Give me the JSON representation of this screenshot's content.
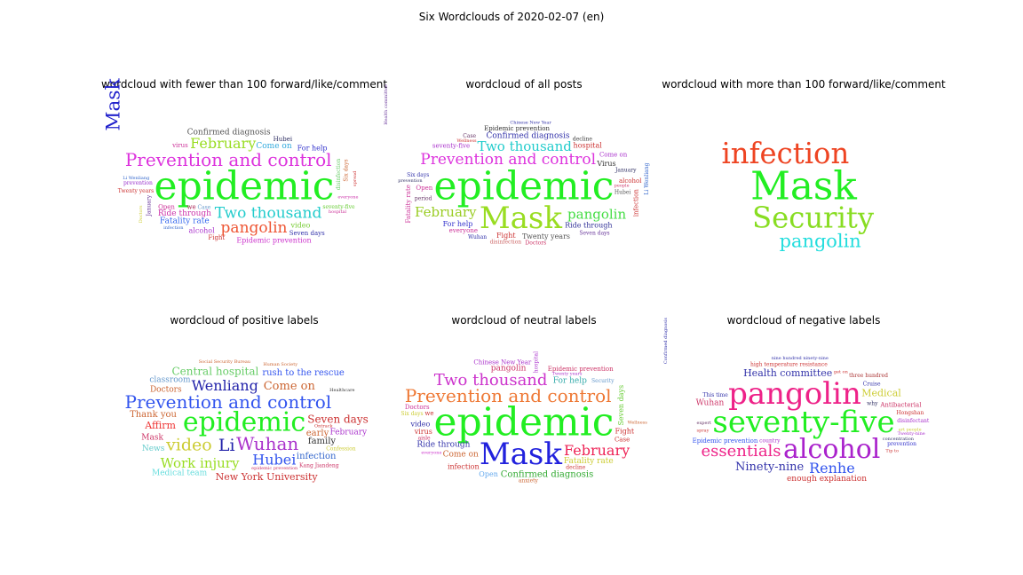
{
  "suptitle": "Six Wordclouds of 2020-02-07 (en)",
  "chart_data": [
    {
      "type": "wordcloud",
      "title": "wordcloud with fewer than 100 forward/like/comment",
      "words": [
        {
          "text": "epidemic",
          "weight": 44,
          "color": "#22ee22"
        },
        {
          "text": "Mask",
          "weight": 36,
          "color": "#2222cc",
          "vertical": true
        },
        {
          "text": "Prevention and control",
          "weight": 20,
          "color": "#dd33dd"
        },
        {
          "text": "Two thousand",
          "weight": 17,
          "color": "#22cccc"
        },
        {
          "text": "pangolin",
          "weight": 17,
          "color": "#ee5533"
        },
        {
          "text": "February",
          "weight": 16,
          "color": "#99dd22"
        },
        {
          "text": "Ride through",
          "weight": 9,
          "color": "#cc33aa"
        },
        {
          "text": "Fatality rate",
          "weight": 9,
          "color": "#3366ee"
        },
        {
          "text": "Come on",
          "weight": 9,
          "color": "#33aadd"
        },
        {
          "text": "Confirmed diagnosis",
          "weight": 9,
          "color": "#555555"
        },
        {
          "text": "Epidemic prevention",
          "weight": 8,
          "color": "#cc33cc"
        },
        {
          "text": "video",
          "weight": 8,
          "color": "#77cc33"
        },
        {
          "text": "alcohol",
          "weight": 8,
          "color": "#aa33cc"
        },
        {
          "text": "For help",
          "weight": 8,
          "color": "#3333cc"
        },
        {
          "text": "Hubei",
          "weight": 7,
          "color": "#333366"
        },
        {
          "text": "Fight",
          "weight": 7,
          "color": "#cc3333"
        },
        {
          "text": "we",
          "weight": 7,
          "color": "#aa2255"
        },
        {
          "text": "Seven days",
          "weight": 7,
          "color": "#3333aa"
        },
        {
          "text": "Open",
          "weight": 7,
          "color": "#cc3399"
        },
        {
          "text": "virus",
          "weight": 7,
          "color": "#cc3399"
        },
        {
          "text": "Twenty years",
          "weight": 6,
          "color": "#cc3333"
        },
        {
          "text": "seventy-five",
          "weight": 6,
          "color": "#66cc33"
        },
        {
          "text": "prevention",
          "weight": 6,
          "color": "#9933cc"
        },
        {
          "text": "everyone",
          "weight": 5,
          "color": "#cc33aa"
        },
        {
          "text": "hospital",
          "weight": 5,
          "color": "#cc3399"
        },
        {
          "text": "Li Wenliang",
          "weight": 5,
          "color": "#3366cc"
        },
        {
          "text": "infection",
          "weight": 5,
          "color": "#3366cc"
        },
        {
          "text": "Case",
          "weight": 6,
          "color": "#6699cc"
        },
        {
          "text": "disinfection",
          "weight": 6,
          "color": "#66cc66",
          "vertical": true
        },
        {
          "text": "January",
          "weight": 6,
          "color": "#663399",
          "vertical": true
        },
        {
          "text": "Six days",
          "weight": 6,
          "color": "#cc6633",
          "vertical": true
        },
        {
          "text": "spread",
          "weight": 5,
          "color": "#cc3333",
          "vertical": true
        },
        {
          "text": "Doctors",
          "weight": 5,
          "color": "#cccc33",
          "vertical": true
        }
      ]
    },
    {
      "type": "wordcloud",
      "title": "wordcloud of all posts",
      "words": [
        {
          "text": "epidemic",
          "weight": 44,
          "color": "#22ee22"
        },
        {
          "text": "Mask",
          "weight": 34,
          "color": "#99dd22"
        },
        {
          "text": "Prevention and control",
          "weight": 17,
          "color": "#dd33dd"
        },
        {
          "text": "Two thousand",
          "weight": 15,
          "color": "#22cccc"
        },
        {
          "text": "pangolin",
          "weight": 15,
          "color": "#44dd44"
        },
        {
          "text": "February",
          "weight": 15,
          "color": "#99cc22"
        },
        {
          "text": "Confirmed diagnosis",
          "weight": 9,
          "color": "#3333aa"
        },
        {
          "text": "Ride through",
          "weight": 8,
          "color": "#333399"
        },
        {
          "text": "Epidemic prevention",
          "weight": 7,
          "color": "#333333"
        },
        {
          "text": "Twenty years",
          "weight": 8,
          "color": "#555555"
        },
        {
          "text": "Virus",
          "weight": 8,
          "color": "#333333"
        },
        {
          "text": "For help",
          "weight": 8,
          "color": "#3333cc"
        },
        {
          "text": "Fight",
          "weight": 8,
          "color": "#cc3333"
        },
        {
          "text": "hospital",
          "weight": 8,
          "color": "#cc3333"
        },
        {
          "text": "everyone",
          "weight": 7,
          "color": "#cc3399"
        },
        {
          "text": "seventy-five",
          "weight": 7,
          "color": "#aa33cc"
        },
        {
          "text": "Six days",
          "weight": 6,
          "color": "#3333aa"
        },
        {
          "text": "Seven days",
          "weight": 6,
          "color": "#663399"
        },
        {
          "text": "Come on",
          "weight": 7,
          "color": "#aa33cc"
        },
        {
          "text": "alcohol",
          "weight": 7,
          "color": "#cc3333"
        },
        {
          "text": "Open",
          "weight": 7,
          "color": "#cc3399"
        },
        {
          "text": "Hubei",
          "weight": 6,
          "color": "#555555"
        },
        {
          "text": "period",
          "weight": 6,
          "color": "#663366"
        },
        {
          "text": "decline",
          "weight": 6,
          "color": "#333333"
        },
        {
          "text": "January",
          "weight": 6,
          "color": "#333366"
        },
        {
          "text": "Chinese New Year",
          "weight": 5,
          "color": "#3333aa"
        },
        {
          "text": "Doctors",
          "weight": 6,
          "color": "#cc3366"
        },
        {
          "text": "disinfection",
          "weight": 6,
          "color": "#cc6666"
        },
        {
          "text": "Wuhan",
          "weight": 6,
          "color": "#3333aa"
        },
        {
          "text": "Case",
          "weight": 6,
          "color": "#663366"
        },
        {
          "text": "people",
          "weight": 5,
          "color": "#cc3366"
        },
        {
          "text": "prevention",
          "weight": 5,
          "color": "#333366"
        },
        {
          "text": "Wellness",
          "weight": 5,
          "color": "#cc3333"
        },
        {
          "text": "infection",
          "weight": 7,
          "color": "#cc3333",
          "vertical": true
        },
        {
          "text": "Fatality rate",
          "weight": 7,
          "color": "#cc3399",
          "vertical": true
        },
        {
          "text": "Li Wenliang",
          "weight": 6,
          "color": "#3366cc",
          "vertical": true
        },
        {
          "text": "Health committee",
          "weight": 5,
          "color": "#663399",
          "vertical": true
        }
      ]
    },
    {
      "type": "wordcloud",
      "title": "wordcloud with more than 100 forward/like/comment",
      "words": [
        {
          "text": "Mask",
          "weight": 46,
          "color": "#22ee22"
        },
        {
          "text": "Security",
          "weight": 34,
          "color": "#88dd22"
        },
        {
          "text": "pangolin",
          "weight": 22,
          "color": "#22dddd"
        },
        {
          "text": "infection",
          "weight": 34,
          "color": "#ee4422"
        }
      ]
    },
    {
      "type": "wordcloud",
      "title": "wordcloud of positive labels",
      "words": [
        {
          "text": "epidemic",
          "weight": 30,
          "color": "#22ee22"
        },
        {
          "text": "Prevention and control",
          "weight": 20,
          "color": "#3355ee"
        },
        {
          "text": "Wuhan",
          "weight": 20,
          "color": "#aa33cc"
        },
        {
          "text": "Li",
          "weight": 19,
          "color": "#2222aa"
        },
        {
          "text": "Wenliang",
          "weight": 16,
          "color": "#2222aa"
        },
        {
          "text": "Hubei",
          "weight": 16,
          "color": "#3355ee"
        },
        {
          "text": "Work injury",
          "weight": 15,
          "color": "#99dd22"
        },
        {
          "text": "video",
          "weight": 19,
          "color": "#cccc33"
        },
        {
          "text": "Come on",
          "weight": 13,
          "color": "#cc6633"
        },
        {
          "text": "Seven days",
          "weight": 12,
          "color": "#cc3333"
        },
        {
          "text": "Central hospital",
          "weight": 12,
          "color": "#66cc66"
        },
        {
          "text": "New York University",
          "weight": 11,
          "color": "#cc3333"
        },
        {
          "text": "Affirm",
          "weight": 11,
          "color": "#ee3333"
        },
        {
          "text": "rush to the rescue",
          "weight": 10,
          "color": "#3355ee"
        },
        {
          "text": "early",
          "weight": 10,
          "color": "#cc6633"
        },
        {
          "text": "Thank you",
          "weight": 10,
          "color": "#cc6633"
        },
        {
          "text": "February",
          "weight": 9,
          "color": "#aa33cc"
        },
        {
          "text": "family",
          "weight": 10,
          "color": "#333333"
        },
        {
          "text": "Doctors",
          "weight": 9,
          "color": "#cc6633"
        },
        {
          "text": "infection",
          "weight": 10,
          "color": "#3366cc"
        },
        {
          "text": "Mask",
          "weight": 9,
          "color": "#cc3366"
        },
        {
          "text": "classroom",
          "weight": 9,
          "color": "#6699cc"
        },
        {
          "text": "Medical team",
          "weight": 9,
          "color": "#66dddd"
        },
        {
          "text": "News",
          "weight": 9,
          "color": "#66cccc"
        },
        {
          "text": "Kang Jiandeng",
          "weight": 6,
          "color": "#cc3366"
        },
        {
          "text": "Social Security Bureau",
          "weight": 5,
          "color": "#cc6633"
        },
        {
          "text": "Human Society",
          "weight": 5,
          "color": "#cc6633"
        },
        {
          "text": "Healthcare",
          "weight": 5,
          "color": "#333333"
        },
        {
          "text": "Confession",
          "weight": 6,
          "color": "#cccc33"
        },
        {
          "text": "Ontrack",
          "weight": 5,
          "color": "#cc3333"
        },
        {
          "text": "epidemic prevention",
          "weight": 5,
          "color": "#cc3366"
        }
      ]
    },
    {
      "type": "wordcloud",
      "title": "wordcloud of neutral labels",
      "words": [
        {
          "text": "epidemic",
          "weight": 44,
          "color": "#22ee22"
        },
        {
          "text": "Mask",
          "weight": 34,
          "color": "#2222dd"
        },
        {
          "text": "Prevention and control",
          "weight": 20,
          "color": "#ee7733"
        },
        {
          "text": "Two thousand",
          "weight": 18,
          "color": "#cc33cc"
        },
        {
          "text": "February",
          "weight": 16,
          "color": "#ee2255"
        },
        {
          "text": "Confirmed diagnosis",
          "weight": 10,
          "color": "#33aa33"
        },
        {
          "text": "Ride through",
          "weight": 9,
          "color": "#3333aa"
        },
        {
          "text": "Fatality rate",
          "weight": 9,
          "color": "#cccc33"
        },
        {
          "text": "Come on",
          "weight": 9,
          "color": "#cc6633"
        },
        {
          "text": "pangolin",
          "weight": 9,
          "color": "#cc3366"
        },
        {
          "text": "For help",
          "weight": 9,
          "color": "#33aaaa"
        },
        {
          "text": "Seven days",
          "weight": 8,
          "color": "#66cc33",
          "vertical": true
        },
        {
          "text": "Fight",
          "weight": 8,
          "color": "#cc3333"
        },
        {
          "text": "Open",
          "weight": 8,
          "color": "#66aaee"
        },
        {
          "text": "infection",
          "weight": 8,
          "color": "#cc3333"
        },
        {
          "text": "video",
          "weight": 8,
          "color": "#3333aa"
        },
        {
          "text": "virus",
          "weight": 8,
          "color": "#cc3333"
        },
        {
          "text": "Chinese New Year",
          "weight": 7,
          "color": "#aa33cc"
        },
        {
          "text": "Epidemic prevention",
          "weight": 7,
          "color": "#cc3366"
        },
        {
          "text": "Doctors",
          "weight": 7,
          "color": "#cc3399"
        },
        {
          "text": "Security",
          "weight": 6,
          "color": "#6699cc"
        },
        {
          "text": "Case",
          "weight": 7,
          "color": "#cc3333"
        },
        {
          "text": "aisle",
          "weight": 6,
          "color": "#cc3366"
        },
        {
          "text": "we",
          "weight": 7,
          "color": "#cc3333"
        },
        {
          "text": "decline",
          "weight": 6,
          "color": "#cc3333"
        },
        {
          "text": "anxiety",
          "weight": 6,
          "color": "#cc6633"
        },
        {
          "text": "Six days",
          "weight": 6,
          "color": "#cccc33"
        },
        {
          "text": "everyone",
          "weight": 5,
          "color": "#cc33cc"
        },
        {
          "text": "Twenty years",
          "weight": 5,
          "color": "#aa33cc"
        },
        {
          "text": "hospital",
          "weight": 6,
          "color": "#aa33cc",
          "vertical": true
        },
        {
          "text": "Wellness",
          "weight": 5,
          "color": "#cc6633"
        }
      ]
    },
    {
      "type": "wordcloud",
      "title": "wordcloud of negative labels",
      "words": [
        {
          "text": "seventy-five",
          "weight": 34,
          "color": "#22ee22"
        },
        {
          "text": "pangolin",
          "weight": 34,
          "color": "#ee2288"
        },
        {
          "text": "alcohol",
          "weight": 30,
          "color": "#aa22cc"
        },
        {
          "text": "essentials",
          "weight": 18,
          "color": "#ee2288"
        },
        {
          "text": "Renhe",
          "weight": 16,
          "color": "#3355ee"
        },
        {
          "text": "Ninety-nine",
          "weight": 13,
          "color": "#3333aa"
        },
        {
          "text": "Health committee",
          "weight": 11,
          "color": "#3333aa"
        },
        {
          "text": "Medical",
          "weight": 11,
          "color": "#cccc33"
        },
        {
          "text": "enough explanation",
          "weight": 9,
          "color": "#cc3333"
        },
        {
          "text": "Wuhan",
          "weight": 9,
          "color": "#cc3366"
        },
        {
          "text": "Epidemic prevention",
          "weight": 7,
          "color": "#3355ee"
        },
        {
          "text": "Antibacterial",
          "weight": 7,
          "color": "#cc3366"
        },
        {
          "text": "high temperature resistance",
          "weight": 6,
          "color": "#cc3333"
        },
        {
          "text": "Cruise",
          "weight": 6,
          "color": "#3333aa"
        },
        {
          "text": "three hundred",
          "weight": 6,
          "color": "#aa3333"
        },
        {
          "text": "nine hundred ninety-nine",
          "weight": 5,
          "color": "#3333aa"
        },
        {
          "text": "disinfectant",
          "weight": 6,
          "color": "#aa33cc"
        },
        {
          "text": "Hongshan",
          "weight": 6,
          "color": "#cc3333"
        },
        {
          "text": "This time",
          "weight": 6,
          "color": "#3333aa"
        },
        {
          "text": "concentration",
          "weight": 5,
          "color": "#333366"
        },
        {
          "text": "prevention",
          "weight": 6,
          "color": "#3333cc"
        },
        {
          "text": "Twenty-nine",
          "weight": 5,
          "color": "#aa33cc"
        },
        {
          "text": "spray",
          "weight": 5,
          "color": "#cc3333"
        },
        {
          "text": "Confirmed diagnosis",
          "weight": 6,
          "color": "#3333aa",
          "vertical": true
        },
        {
          "text": "art people",
          "weight": 5,
          "color": "#cccc33"
        },
        {
          "text": "country",
          "weight": 6,
          "color": "#aa33cc"
        },
        {
          "text": "expert",
          "weight": 5,
          "color": "#663366"
        },
        {
          "text": "why",
          "weight": 6,
          "color": "#333366"
        },
        {
          "text": "get on",
          "weight": 5,
          "color": "#cc3333"
        },
        {
          "text": "Tip to",
          "weight": 5,
          "color": "#cc3333"
        }
      ]
    }
  ]
}
